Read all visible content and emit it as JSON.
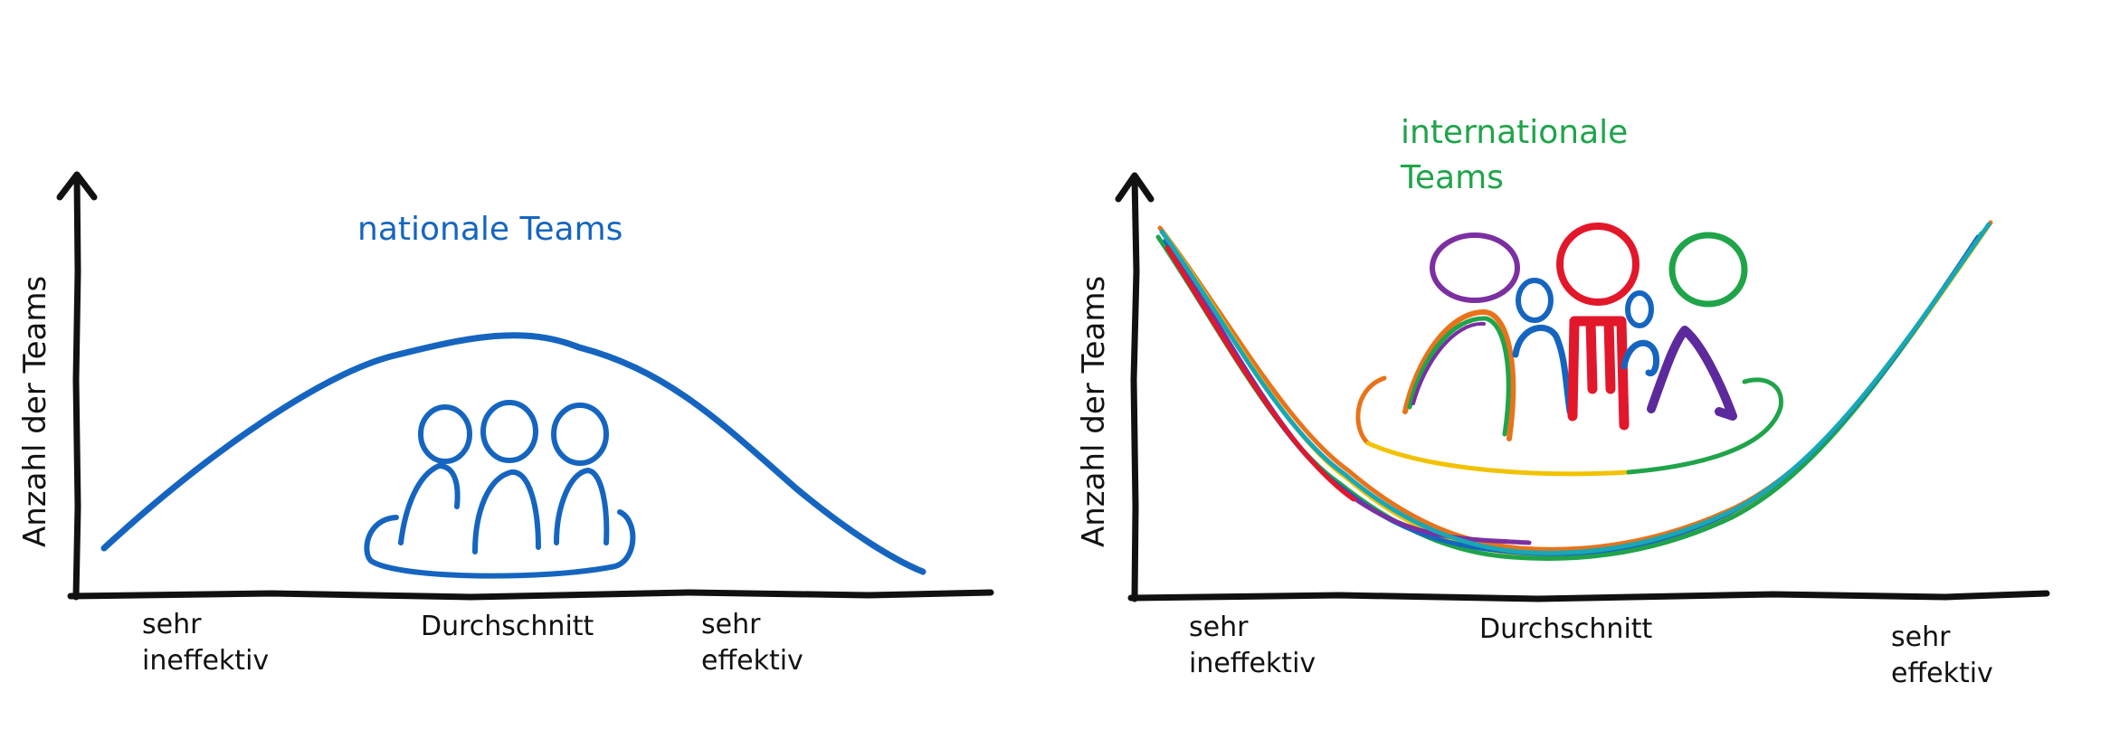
{
  "colors": {
    "axis": "#111111",
    "national": "#1565c0",
    "international_title": "#1fa44a",
    "rainbow": [
      "#e8731a",
      "#f2c200",
      "#1fa44a",
      "#1565c0",
      "#7b2fa0",
      "#e3172a",
      "#19a7b5"
    ],
    "person_red": "#e3172a",
    "person_purple": "#5c2a9c",
    "person_green": "#1fa44a",
    "person_blue": "#1565c0"
  },
  "left_panel": {
    "title": "nationale Teams",
    "y_axis_label": "Anzahl der Teams",
    "x_labels": {
      "low_line1": "sehr",
      "low_line2": "ineffektiv",
      "mid": "Durchschnitt",
      "high_line1": "sehr",
      "high_line2": "effektiv"
    },
    "curve_shape": "bell",
    "icon": "group-of-three-icon"
  },
  "right_panel": {
    "title_line1": "internationale",
    "title_line2": "Teams",
    "y_axis_label": "Anzahl der Teams",
    "x_labels": {
      "low_line1": "sehr",
      "low_line2": "ineffektiv",
      "mid": "Durchschnitt",
      "high_line1": "sehr",
      "high_line2": "effektiv"
    },
    "curve_shape": "inverted-bell (U-shape)",
    "icon": "diverse-group-icon"
  }
}
